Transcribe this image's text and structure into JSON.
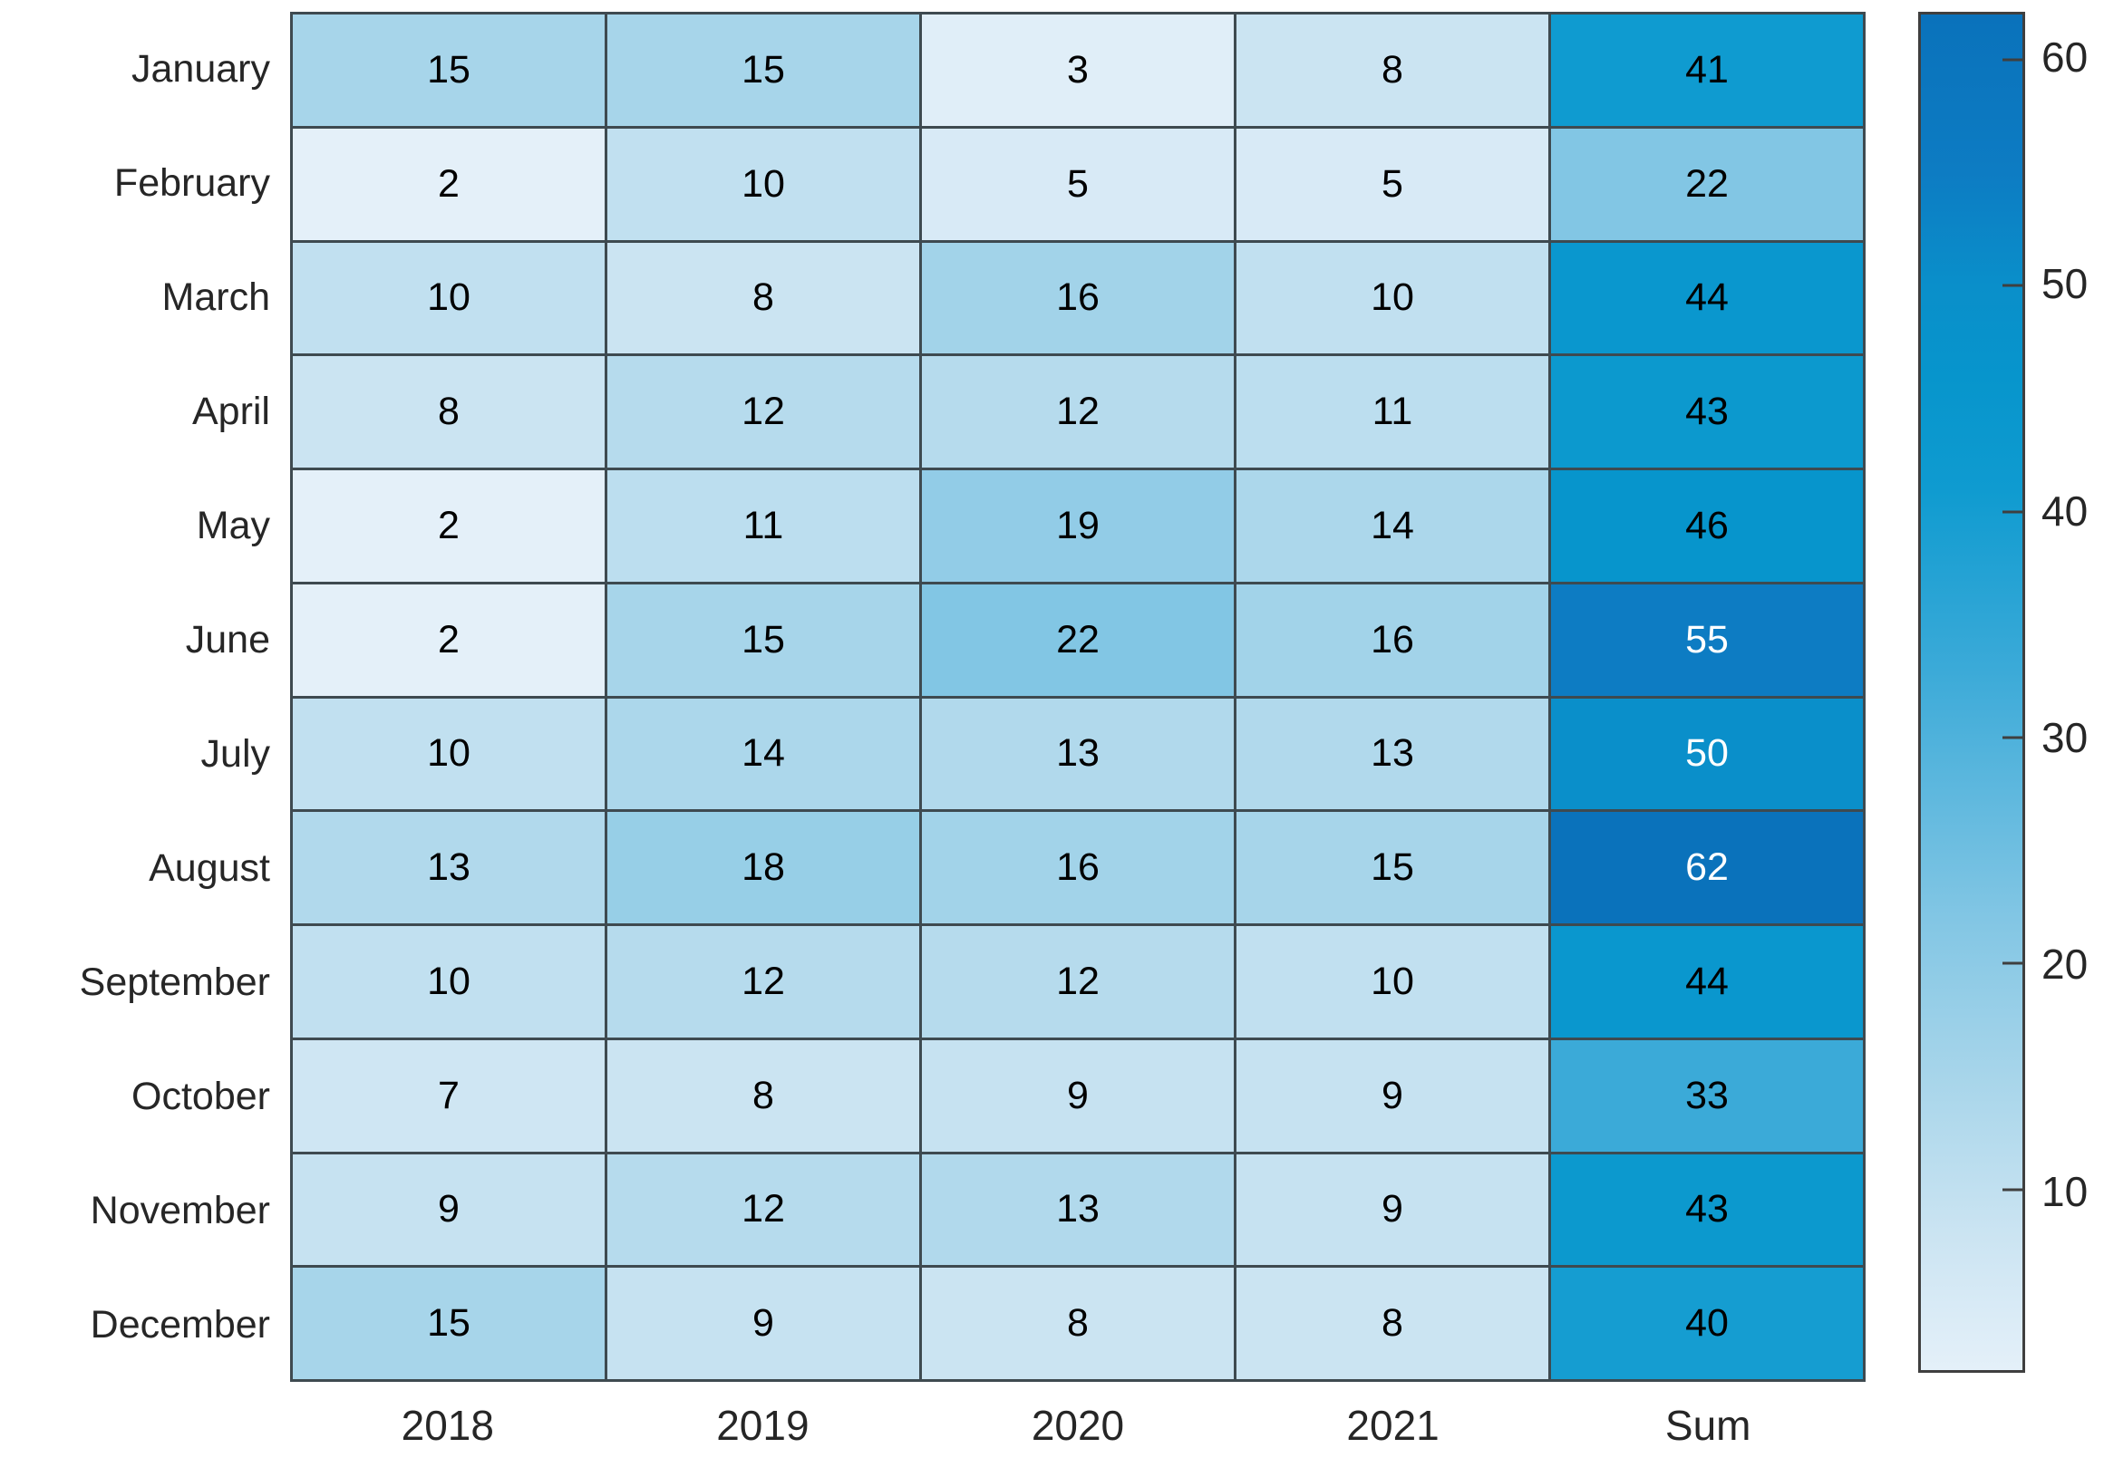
{
  "figure": {
    "background_color": "#ffffff",
    "axis_text_color": "#262626",
    "grid_line_color": "#3e4a50",
    "colorbar_border_color": "#3f3f3f"
  },
  "chart_data": {
    "type": "heatmap",
    "rows": [
      "January",
      "February",
      "March",
      "April",
      "May",
      "June",
      "July",
      "August",
      "September",
      "October",
      "November",
      "December"
    ],
    "columns": [
      "2018",
      "2019",
      "2020",
      "2021",
      "Sum"
    ],
    "values": [
      [
        15,
        15,
        3,
        8,
        41
      ],
      [
        2,
        10,
        5,
        5,
        22
      ],
      [
        10,
        8,
        16,
        10,
        44
      ],
      [
        8,
        12,
        12,
        11,
        43
      ],
      [
        2,
        11,
        19,
        14,
        46
      ],
      [
        2,
        15,
        22,
        16,
        55
      ],
      [
        10,
        14,
        13,
        13,
        50
      ],
      [
        13,
        18,
        16,
        15,
        62
      ],
      [
        10,
        12,
        12,
        10,
        44
      ],
      [
        7,
        8,
        9,
        9,
        33
      ],
      [
        9,
        12,
        13,
        9,
        43
      ],
      [
        15,
        9,
        8,
        8,
        40
      ]
    ],
    "color_limits": [
      2,
      62
    ],
    "colorbar_ticks": [
      10,
      20,
      30,
      40,
      50,
      60
    ],
    "colorbar_position": "right",
    "colormap_stops": [
      {
        "value": 2,
        "color": "#e4f0f9"
      },
      {
        "value": 8,
        "color": "#cbe4f2"
      },
      {
        "value": 15,
        "color": "#a7d5ea"
      },
      {
        "value": 22,
        "color": "#82c6e4"
      },
      {
        "value": 33,
        "color": "#3baad8"
      },
      {
        "value": 41,
        "color": "#0f9bd0"
      },
      {
        "value": 46,
        "color": "#0795cc"
      },
      {
        "value": 50,
        "color": "#0a8fca"
      },
      {
        "value": 55,
        "color": "#0d7cc3"
      },
      {
        "value": 62,
        "color": "#0a72bb"
      }
    ],
    "light_text_threshold": 48,
    "cell_text_color_dark": "#000000",
    "cell_text_color_light": "#ffffff"
  }
}
